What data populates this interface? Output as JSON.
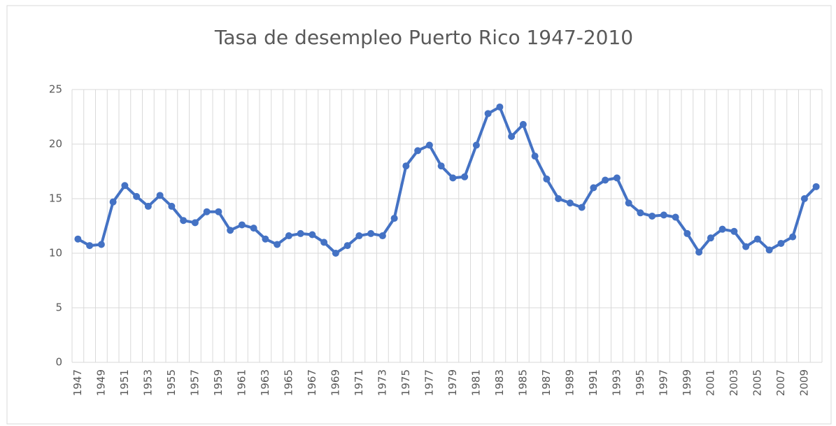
{
  "chart_data": {
    "type": "line",
    "title": "Tasa de desempleo Puerto Rico 1947-2010",
    "categories": [
      "1947",
      null,
      "1949",
      null,
      "1951",
      null,
      "1953",
      null,
      "1955",
      null,
      "1957",
      null,
      "1959",
      null,
      "1961",
      null,
      "1963",
      null,
      "1965",
      null,
      "1967",
      null,
      "1969",
      null,
      "1971",
      null,
      "1973",
      null,
      "1975",
      null,
      "1977",
      null,
      "1979",
      null,
      "1981",
      null,
      "1983",
      null,
      "1985",
      null,
      "1987",
      null,
      "1989",
      null,
      "1991",
      null,
      "1993",
      null,
      "1995",
      null,
      "1997",
      null,
      "1999",
      null,
      "2001",
      null,
      "2003",
      null,
      "2005",
      null,
      "2007",
      null,
      "2009",
      null
    ],
    "values": [
      11.3,
      10.7,
      10.8,
      14.7,
      16.2,
      15.2,
      14.3,
      15.3,
      14.3,
      13.0,
      12.8,
      13.8,
      13.8,
      12.1,
      12.6,
      12.3,
      11.3,
      10.8,
      11.6,
      11.8,
      11.7,
      11.0,
      10.0,
      10.7,
      11.6,
      11.8,
      11.6,
      13.2,
      18.0,
      19.4,
      19.9,
      18.0,
      16.9,
      17.0,
      19.9,
      22.8,
      23.4,
      20.7,
      21.8,
      18.9,
      16.8,
      15.0,
      14.6,
      14.2,
      16.0,
      16.7,
      16.9,
      14.6,
      13.7,
      13.4,
      13.5,
      13.3,
      11.8,
      10.1,
      11.4,
      12.2,
      12.0,
      10.6,
      11.3,
      10.3,
      10.9,
      11.5,
      15.0,
      16.1
    ],
    "color": "#4472c4",
    "ylim": [
      0,
      25
    ],
    "yticks": [
      0,
      5,
      10,
      15,
      20,
      25
    ],
    "grid": true
  }
}
